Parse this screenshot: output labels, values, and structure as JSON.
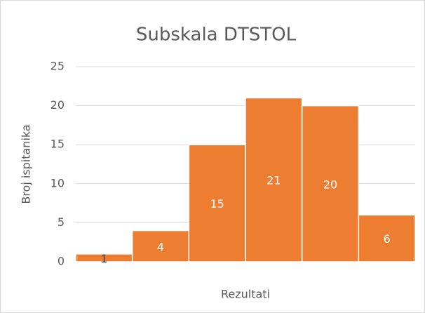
{
  "chart_data": {
    "type": "bar",
    "title": "Subskala DTSTOL",
    "categories": [
      null,
      null,
      null,
      null,
      null,
      null
    ],
    "values": [
      1,
      4,
      15,
      21,
      20,
      6
    ],
    "color": "#ed7d31",
    "ylabel": "Broj ispitanika",
    "xlabel": "Rezultati",
    "ylim": [
      0,
      25
    ],
    "yticks": [
      0,
      5,
      10,
      15,
      20,
      25
    ],
    "grid": true,
    "data_labels": true
  }
}
